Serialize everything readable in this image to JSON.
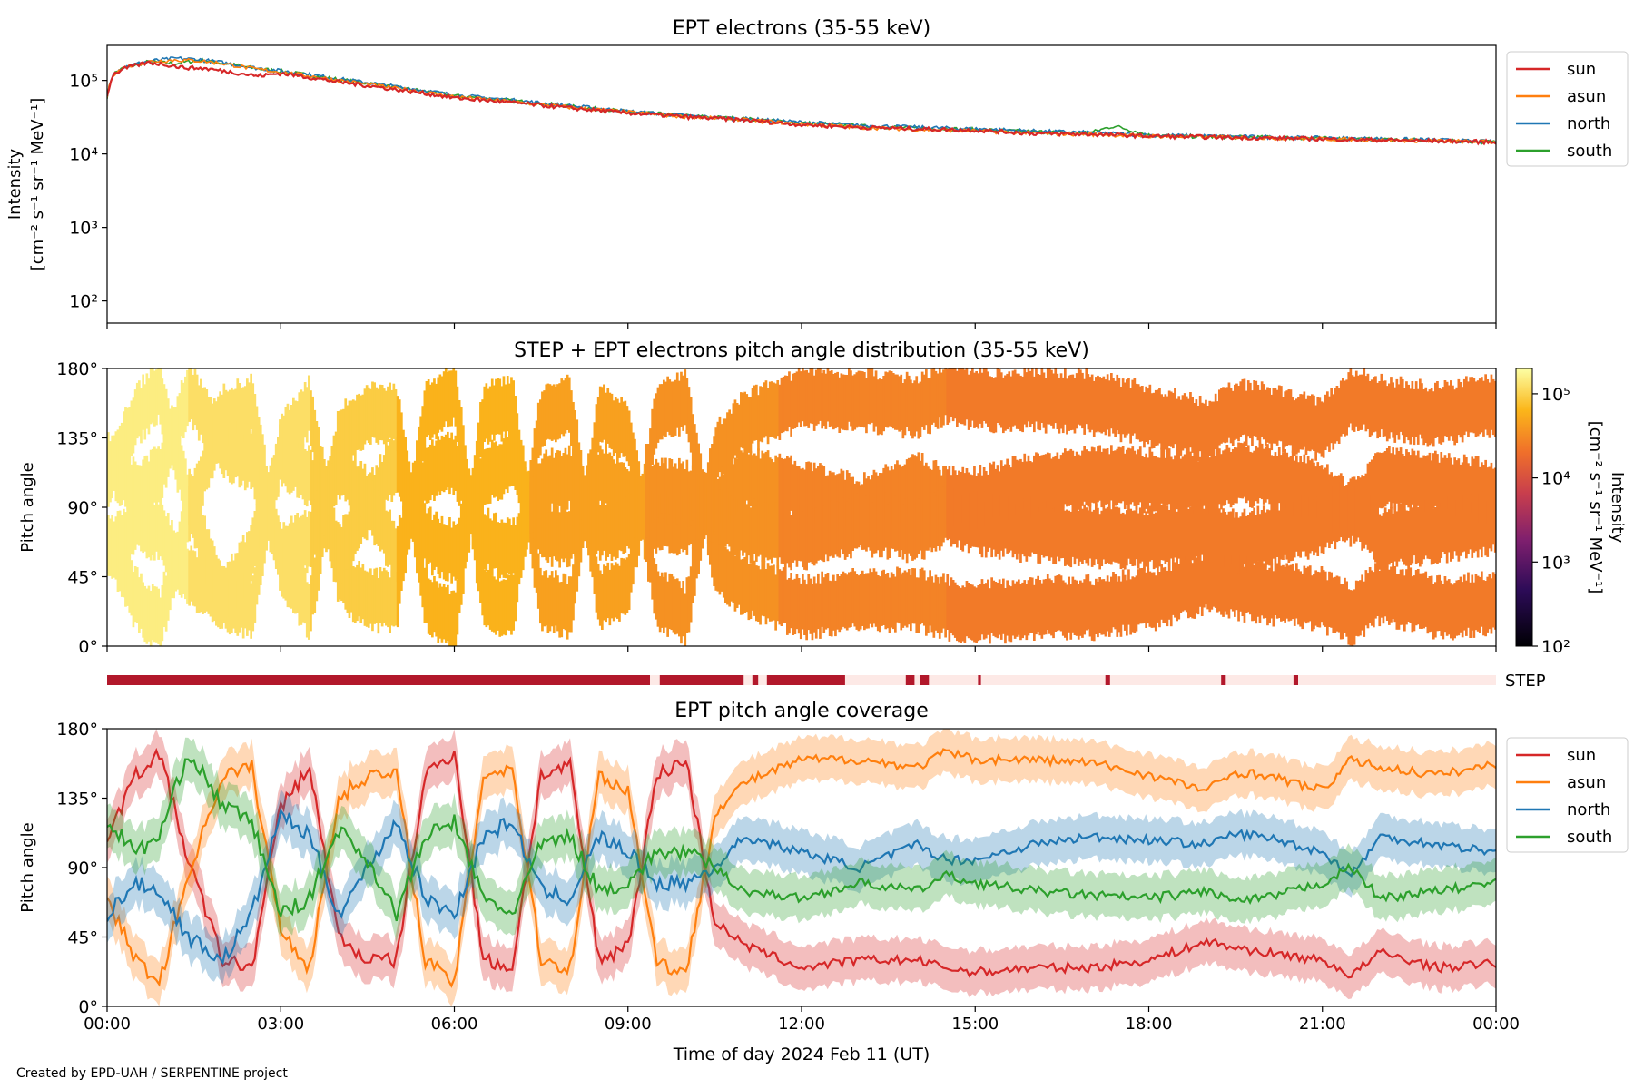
{
  "footer": "Created by EPD-UAH / SERPENTINE project",
  "colors": {
    "sun": "#d62728",
    "asun": "#ff7f0e",
    "north": "#1f77b4",
    "south": "#2ca02c",
    "step_on": "#b2182b",
    "step_off": "#fde9e6"
  },
  "chart_data": [
    {
      "type": "line",
      "title": "EPT electrons (35-55 keV)",
      "ylabel": "Intensity",
      "yunit": "[cm⁻² s⁻¹ sr⁻¹ MeV⁻¹]",
      "yscale": "log",
      "ylim": [
        50,
        300000
      ],
      "yticks": [
        "10²",
        "10³",
        "10⁴",
        "10⁵"
      ],
      "xlim_hours": [
        0,
        24
      ],
      "legend": [
        "sun",
        "asun",
        "north",
        "south"
      ],
      "legend_position": "outside-right",
      "series": [
        {
          "name": "sun",
          "x": [
            0,
            0.1,
            0.3,
            0.7,
            1.0,
            1.3,
            1.7,
            2.3,
            2.6,
            3,
            4,
            5,
            6,
            7,
            8,
            9,
            10,
            11,
            12,
            13,
            14,
            15,
            16,
            17,
            18,
            19,
            20,
            21,
            22,
            23,
            24
          ],
          "y": [
            60000,
            120000,
            145000,
            175000,
            165000,
            150000,
            145000,
            125000,
            115000,
            125000,
            95000,
            75000,
            58000,
            50000,
            42000,
            36000,
            32000,
            29000,
            25000,
            23000,
            22000,
            21000,
            19000,
            18500,
            17500,
            17000,
            16500,
            16000,
            15500,
            15000,
            14500
          ]
        },
        {
          "name": "asun",
          "x": [
            0,
            0.1,
            0.3,
            0.7,
            1.2,
            1.6,
            2.0,
            2.5,
            3,
            4,
            5,
            6,
            7,
            8,
            9,
            10,
            11,
            12,
            13,
            14,
            15,
            16,
            17,
            18,
            19,
            20,
            21,
            22,
            23,
            24
          ],
          "y": [
            60000,
            120000,
            150000,
            180000,
            190000,
            185000,
            170000,
            145000,
            130000,
            100000,
            78000,
            60000,
            51000,
            43000,
            37000,
            32000,
            29000,
            25500,
            23000,
            21500,
            20500,
            19000,
            18500,
            17500,
            17000,
            16500,
            16000,
            15500,
            15000,
            14500
          ]
        },
        {
          "name": "north",
          "x": [
            0,
            0.1,
            0.3,
            0.7,
            1.2,
            1.6,
            2.0,
            2.5,
            3,
            4,
            5,
            6,
            7,
            8,
            9,
            10,
            11,
            12,
            13,
            14,
            15,
            16,
            17,
            18,
            19,
            20,
            21,
            22,
            23,
            24
          ],
          "y": [
            60000,
            125000,
            152000,
            182000,
            200000,
            192000,
            175000,
            150000,
            135000,
            105000,
            82000,
            63000,
            54000,
            45000,
            38000,
            33000,
            30000,
            27000,
            24500,
            23000,
            22000,
            20500,
            19500,
            18000,
            17500,
            17000,
            16500,
            16000,
            15500,
            14500
          ]
        },
        {
          "name": "south",
          "x": [
            0,
            0.1,
            0.3,
            0.7,
            1.2,
            1.6,
            2.0,
            2.5,
            3,
            4,
            5,
            6,
            7,
            8,
            9,
            10,
            11,
            12,
            13,
            14,
            15,
            16,
            17,
            17.4,
            18,
            19,
            20,
            21,
            22,
            23,
            24
          ],
          "y": [
            60000,
            122000,
            150000,
            178000,
            170000,
            190000,
            172000,
            148000,
            133000,
            103000,
            80000,
            62000,
            53000,
            44500,
            37500,
            33000,
            30000,
            26500,
            24000,
            22500,
            21500,
            20000,
            19500,
            24000,
            18000,
            17200,
            16800,
            16300,
            15800,
            15200,
            14500
          ]
        }
      ]
    },
    {
      "type": "heatmap",
      "title": "STEP + EPT electrons pitch angle distribution (35-55 keV)",
      "ylabel": "Pitch angle",
      "ylim": [
        0,
        180
      ],
      "yticks": [
        "0°",
        "45°",
        "90°",
        "135°",
        "180°"
      ],
      "xlim_hours": [
        0,
        24
      ],
      "colorbar": {
        "label": "Intensity",
        "unit": "[cm⁻² s⁻¹ sr⁻¹ MeV⁻¹]",
        "scale": "log",
        "range": [
          100,
          200000
        ],
        "ticks": [
          "10²",
          "10³",
          "10⁴",
          "10⁵"
        ],
        "colormap": "inferno"
      },
      "bands": [
        {
          "x0": 0.0,
          "x1": 1.4,
          "intensity": 150000
        },
        {
          "x0": 1.4,
          "x1": 3.5,
          "intensity": 120000
        },
        {
          "x0": 3.5,
          "x1": 5.0,
          "intensity": 90000
        },
        {
          "x0": 5.0,
          "x1": 7.3,
          "intensity": 60000
        },
        {
          "x0": 7.3,
          "x1": 9.3,
          "intensity": 45000
        },
        {
          "x0": 9.3,
          "x1": 11.6,
          "intensity": 35000
        },
        {
          "x0": 11.6,
          "x1": 14.5,
          "intensity": 28000
        },
        {
          "x0": 14.5,
          "x1": 24.0,
          "intensity": 24000
        }
      ]
    },
    {
      "type": "timeline",
      "label": "STEP",
      "xlim_hours": [
        0,
        24
      ],
      "on_intervals": [
        [
          0.0,
          9.38
        ],
        [
          9.55,
          11.0
        ],
        [
          11.15,
          11.25
        ],
        [
          11.4,
          12.75
        ],
        [
          13.8,
          13.95
        ],
        [
          14.05,
          14.2
        ],
        [
          15.05,
          15.1
        ],
        [
          17.25,
          17.33
        ],
        [
          19.25,
          19.33
        ],
        [
          20.5,
          20.58
        ]
      ]
    },
    {
      "type": "line",
      "title": "EPT pitch angle coverage",
      "ylabel": "Pitch angle",
      "xlabel": "Time of day 2024 Feb 11 (UT)",
      "ylim": [
        0,
        180
      ],
      "yticks": [
        "0°",
        "45°",
        "90°",
        "135°",
        "180°"
      ],
      "xlim_hours": [
        0,
        24
      ],
      "xticks": [
        "00:00",
        "03:00",
        "06:00",
        "09:00",
        "12:00",
        "15:00",
        "18:00",
        "21:00",
        "00:00"
      ],
      "legend": [
        "sun",
        "asun",
        "north",
        "south"
      ],
      "legend_position": "outside-right",
      "band_halfwidth_deg": 14,
      "series": [
        {
          "name": "sun",
          "x": [
            0,
            0.5,
            0.9,
            1.4,
            2.0,
            2.5,
            3.0,
            3.5,
            4.0,
            4.5,
            5.0,
            5.5,
            6.0,
            6.5,
            7.0,
            7.5,
            8.0,
            8.5,
            9.0,
            9.5,
            10.0,
            10.5,
            11.0,
            12.0,
            13.0,
            14.0,
            14.5,
            15.0,
            16.0,
            17.0,
            18.0,
            19.0,
            19.5,
            20.0,
            21.0,
            21.5,
            22.0,
            23.0,
            24.0
          ],
          "y": [
            110,
            150,
            165,
            95,
            30,
            25,
            130,
            155,
            45,
            30,
            30,
            150,
            165,
            30,
            25,
            150,
            155,
            30,
            40,
            150,
            160,
            55,
            40,
            25,
            30,
            30,
            25,
            22,
            25,
            25,
            30,
            42,
            38,
            35,
            30,
            20,
            35,
            25,
            28
          ]
        },
        {
          "name": "asun",
          "x": [
            0,
            0.5,
            0.9,
            1.4,
            2.0,
            2.5,
            3.0,
            3.5,
            4.0,
            4.5,
            5.0,
            5.5,
            6.0,
            6.5,
            7.0,
            7.5,
            8.0,
            8.5,
            9.0,
            9.5,
            10.0,
            10.5,
            11.0,
            12.0,
            13.0,
            14.0,
            14.5,
            15.0,
            16.0,
            17.0,
            18.0,
            19.0,
            19.5,
            20.0,
            21.0,
            21.5,
            22.0,
            23.0,
            24.0
          ],
          "y": [
            70,
            30,
            15,
            85,
            150,
            155,
            50,
            25,
            135,
            150,
            150,
            30,
            15,
            150,
            155,
            30,
            25,
            150,
            140,
            30,
            20,
            125,
            145,
            160,
            160,
            155,
            165,
            160,
            160,
            158,
            150,
            140,
            152,
            150,
            140,
            160,
            155,
            150,
            157
          ]
        },
        {
          "name": "north",
          "x": [
            0,
            0.5,
            0.9,
            1.4,
            2.0,
            2.5,
            3.0,
            3.5,
            4.0,
            4.5,
            5.0,
            5.5,
            6.0,
            6.5,
            7.0,
            7.5,
            8.0,
            8.5,
            9.0,
            9.5,
            10.0,
            10.5,
            11.0,
            12.0,
            13.0,
            14.0,
            14.5,
            15.0,
            16.0,
            17.0,
            18.0,
            19.0,
            19.5,
            20.0,
            21.0,
            21.5,
            22.0,
            23.0,
            24.0
          ],
          "y": [
            60,
            80,
            75,
            45,
            30,
            60,
            125,
            110,
            60,
            90,
            120,
            70,
            60,
            110,
            120,
            75,
            70,
            110,
            100,
            80,
            80,
            90,
            110,
            100,
            90,
            105,
            95,
            95,
            105,
            110,
            108,
            105,
            112,
            110,
            100,
            85,
            110,
            105,
            100
          ]
        },
        {
          "name": "south",
          "x": [
            0,
            0.5,
            0.9,
            1.4,
            2.0,
            2.5,
            3.0,
            3.5,
            4.0,
            4.5,
            5.0,
            5.5,
            6.0,
            6.5,
            7.0,
            7.5,
            8.0,
            8.5,
            9.0,
            9.5,
            10.0,
            10.5,
            11.0,
            12.0,
            13.0,
            14.0,
            14.5,
            15.0,
            16.0,
            17.0,
            18.0,
            19.0,
            19.5,
            20.0,
            21.0,
            21.5,
            22.0,
            23.0,
            24.0
          ],
          "y": [
            120,
            100,
            110,
            165,
            130,
            120,
            60,
            70,
            115,
            95,
            60,
            110,
            120,
            70,
            60,
            105,
            110,
            75,
            80,
            100,
            100,
            90,
            75,
            70,
            80,
            75,
            85,
            80,
            75,
            72,
            70,
            75,
            68,
            70,
            80,
            90,
            70,
            75,
            80
          ]
        }
      ]
    }
  ]
}
